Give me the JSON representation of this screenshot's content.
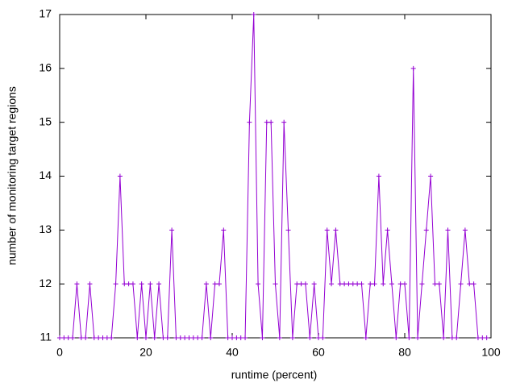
{
  "chart_data": {
    "type": "line",
    "xlabel": "runtime (percent)",
    "ylabel": "number of monitoring target regions",
    "xlim": [
      0,
      100
    ],
    "ylim": [
      11,
      17
    ],
    "xticks": [
      0,
      20,
      40,
      60,
      80,
      100
    ],
    "yticks": [
      11,
      12,
      13,
      14,
      15,
      16,
      17
    ],
    "series": [
      {
        "color": "#9400d3",
        "x": [
          0,
          1,
          2,
          3,
          4,
          5,
          6,
          7,
          8,
          9,
          10,
          11,
          12,
          13,
          14,
          15,
          16,
          17,
          18,
          19,
          20,
          21,
          22,
          23,
          24,
          25,
          26,
          27,
          28,
          29,
          30,
          31,
          32,
          33,
          34,
          35,
          36,
          37,
          38,
          39,
          40,
          41,
          42,
          43,
          44,
          45,
          46,
          47,
          48,
          49,
          50,
          51,
          52,
          53,
          54,
          55,
          56,
          57,
          58,
          59,
          60,
          61,
          62,
          63,
          64,
          65,
          66,
          67,
          68,
          69,
          70,
          71,
          72,
          73,
          74,
          75,
          76,
          77,
          78,
          79,
          80,
          81,
          82,
          83,
          84,
          85,
          86,
          87,
          88,
          89,
          90,
          91,
          92,
          93,
          94,
          95,
          96,
          97,
          98,
          99
        ],
        "values": [
          11,
          11,
          11,
          11,
          12,
          11,
          11,
          12,
          11,
          11,
          11,
          11,
          11,
          12,
          14,
          12,
          12,
          12,
          11,
          12,
          11,
          12,
          11,
          12,
          11,
          11,
          13,
          11,
          11,
          11,
          11,
          11,
          11,
          11,
          12,
          11,
          12,
          12,
          13,
          11,
          11,
          11,
          11,
          11,
          15,
          17,
          12,
          11,
          15,
          15,
          12,
          11,
          15,
          13,
          11,
          12,
          12,
          12,
          11,
          12,
          11,
          11,
          13,
          12,
          13,
          12,
          12,
          12,
          12,
          12,
          12,
          11,
          12,
          12,
          14,
          12,
          13,
          12,
          11,
          12,
          12,
          11,
          16,
          11,
          12,
          13,
          14,
          12,
          12,
          11,
          13,
          11,
          11,
          12,
          13,
          12,
          12,
          11,
          11,
          11
        ]
      }
    ]
  }
}
